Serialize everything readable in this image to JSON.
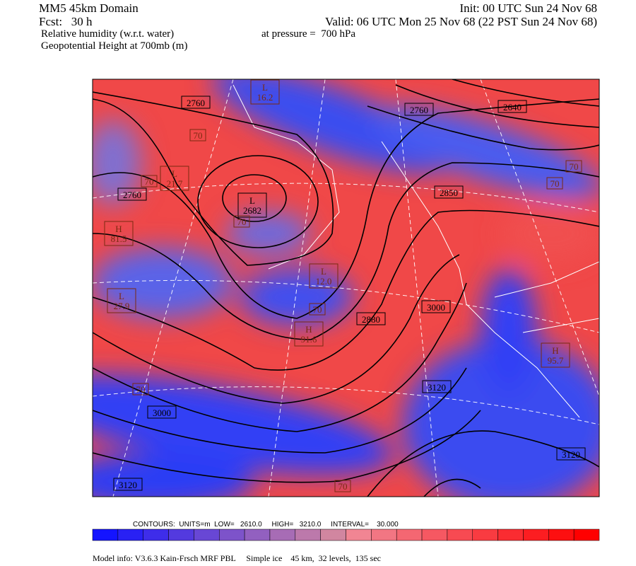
{
  "header": {
    "domain": "MM5 45km Domain",
    "init": "Init: 00 UTC Sun 24 Nov 68",
    "forecast": "Fcst:   30 h",
    "valid": "Valid: 06 UTC Mon 25 Nov 68 (22 PST Sun 24 Nov 68)",
    "field": "Relative humidity (w.r.t. water)",
    "level": "at pressure =  700 hPa",
    "overlay": "Geopotential Height at 700mb (m)"
  },
  "map": {
    "height_labels": [
      "2760",
      "2760",
      "2760",
      "2640",
      "2850",
      "2880",
      "3000",
      "3000",
      "3120",
      "3120",
      "3120"
    ],
    "centers": [
      {
        "letter": "L",
        "value": "2682"
      },
      {
        "letter": "L",
        "value": "21.7"
      },
      {
        "letter": "H",
        "value": "81.5"
      },
      {
        "letter": "L",
        "value": "27.9"
      },
      {
        "letter": "L",
        "value": "12.0"
      },
      {
        "letter": "H",
        "value": "91.6"
      },
      {
        "letter": "L",
        "value": "16.2"
      },
      {
        "letter": "H",
        "value": "95.7"
      }
    ],
    "rh_labels": [
      "70",
      "70",
      "70",
      "70",
      "70",
      "70",
      "70",
      "70"
    ]
  },
  "contour_info": "CONTOURS:  UNITS=m  LOW=   2610.0     HIGH=   3210.0     INTERVAL=    30.000",
  "model_info": "Model info: V3.6.3 Kain-Frsch MRF PBL     Simple ice    45 km,  32 levels,  135 sec"
}
